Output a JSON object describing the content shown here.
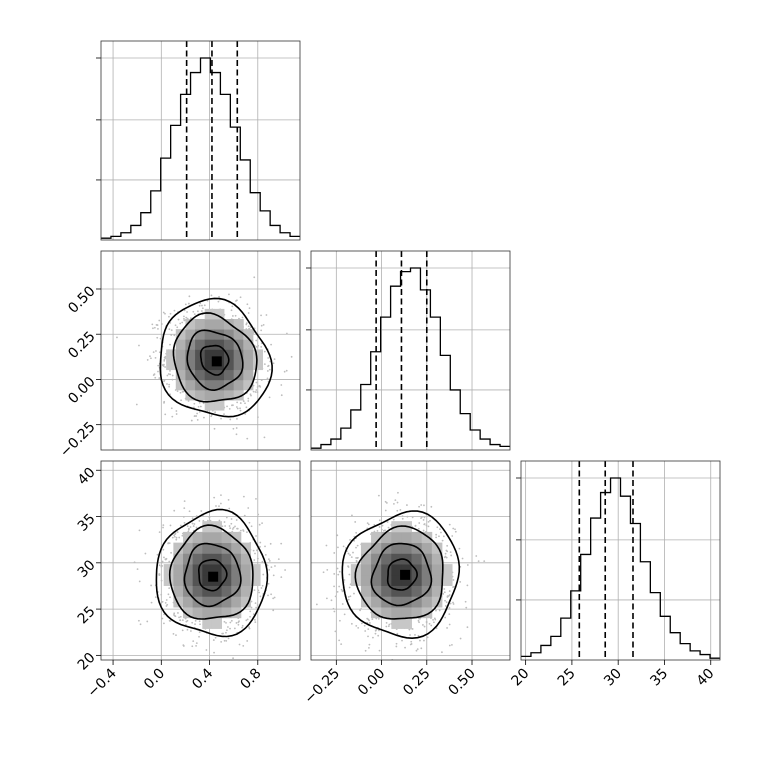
{
  "chart_data": {
    "type": "corner",
    "grid": true,
    "colors": {
      "line": "#000000",
      "grid": "#b0b0b0",
      "scatter": "#bdbdbd"
    },
    "parameters": [
      {
        "index": 0,
        "xlim": [
          -0.5,
          1.15
        ],
        "median": 0.42,
        "q16": 0.21,
        "q84": 0.63,
        "mean": 0.42,
        "sd": 0.2,
        "ticks": [
          -0.4,
          0.0,
          0.4,
          0.8
        ],
        "tick_labels": [
          "−0.4",
          "0.0",
          "0.4",
          "0.8"
        ]
      },
      {
        "index": 1,
        "xlim": [
          -0.39,
          0.71
        ],
        "median": 0.11,
        "q16": -0.03,
        "q84": 0.25,
        "mean": 0.11,
        "sd": 0.14,
        "ticks": [
          -0.25,
          0.0,
          0.25,
          0.5
        ],
        "tick_labels": [
          "−0.25",
          "0.00",
          "0.25",
          "0.50"
        ]
      },
      {
        "index": 2,
        "xlim": [
          19.5,
          41.0
        ],
        "median": 28.6,
        "q16": 25.8,
        "q84": 31.6,
        "mean": 28.7,
        "sd": 2.9,
        "ticks": [
          20,
          25,
          30,
          35,
          40
        ],
        "tick_labels": [
          "20",
          "25",
          "30",
          "35",
          "40"
        ]
      }
    ],
    "histograms": [
      {
        "param": 0,
        "bin_edges": [
          -0.5,
          1.15
        ],
        "counts": [
          1,
          2,
          4,
          8,
          15,
          27,
          45,
          63,
          80,
          92,
          100,
          92,
          80,
          62,
          44,
          26,
          16,
          8,
          4,
          2
        ]
      },
      {
        "param": 1,
        "bin_edges": [
          -0.39,
          0.71
        ],
        "counts": [
          1,
          3,
          6,
          12,
          22,
          36,
          54,
          73,
          90,
          98,
          100,
          88,
          73,
          52,
          33,
          20,
          11,
          6,
          3,
          2
        ]
      },
      {
        "param": 2,
        "bin_edges": [
          19.5,
          41.0
        ],
        "counts": [
          2,
          4,
          8,
          13,
          23,
          38,
          58,
          78,
          92,
          100,
          90,
          75,
          54,
          37,
          24,
          15,
          9,
          5,
          3,
          1
        ]
      }
    ],
    "density_panels": [
      {
        "x_param": 0,
        "y_param": 1,
        "center": [
          0.44,
          0.11
        ],
        "spread": [
          0.2,
          0.14
        ],
        "peak": [
          0.46,
          0.1
        ],
        "rho": -0.1
      },
      {
        "x_param": 0,
        "y_param": 2,
        "center": [
          0.42,
          28.7
        ],
        "spread": [
          0.2,
          2.9
        ],
        "peak": [
          0.43,
          28.5
        ],
        "rho": 0.0
      },
      {
        "x_param": 1,
        "y_param": 2,
        "center": [
          0.11,
          28.7
        ],
        "spread": [
          0.14,
          2.9
        ],
        "peak": [
          0.13,
          28.7
        ],
        "rho": 0.05
      }
    ],
    "contour_levels_sigma": [
      0.5,
      1.0,
      1.5,
      2.0
    ]
  }
}
